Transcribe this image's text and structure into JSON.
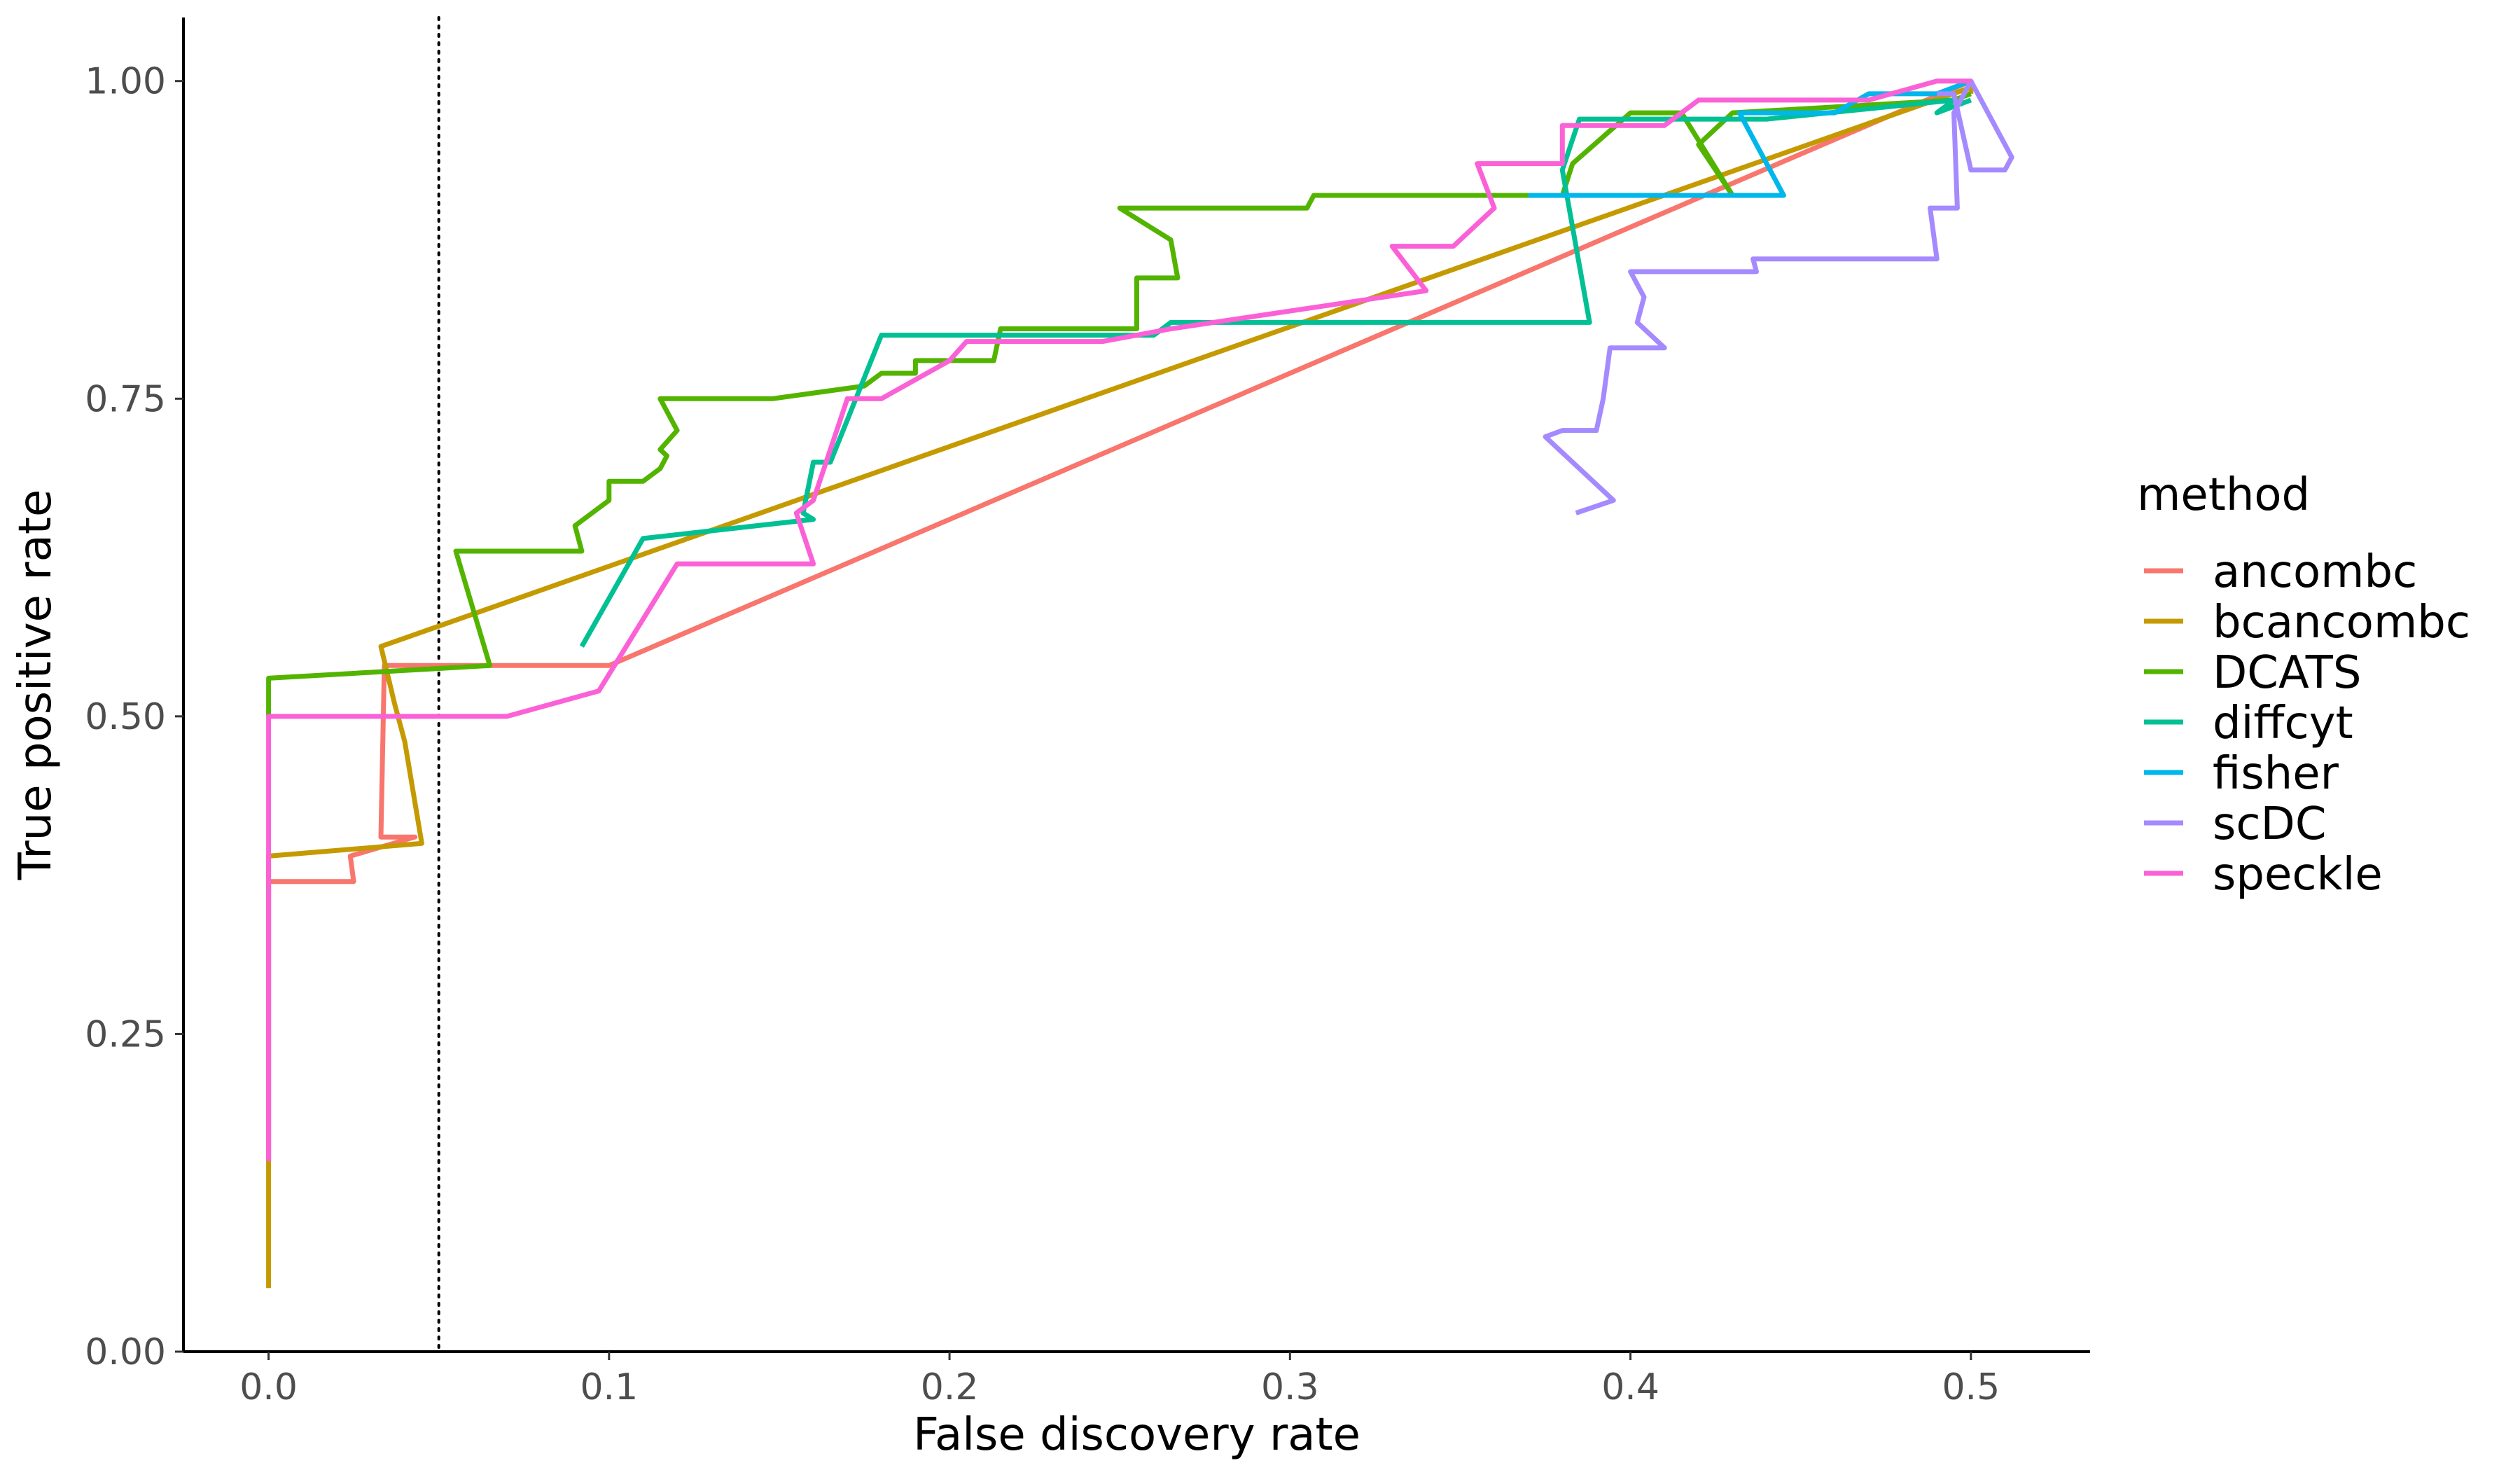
{
  "chart_data": {
    "type": "line",
    "xlabel": "False discovery rate",
    "ylabel": "True positive rate",
    "xlim": [
      -0.025,
      0.535
    ],
    "ylim": [
      0,
      1.05
    ],
    "x_ticks": [
      0.0,
      0.1,
      0.2,
      0.3,
      0.4,
      0.5
    ],
    "x_tick_labels": [
      "0.0",
      "0.1",
      "0.2",
      "0.3",
      "0.4",
      "0.5"
    ],
    "y_ticks": [
      0.0,
      0.25,
      0.5,
      0.75,
      1.0
    ],
    "y_tick_labels": [
      "0.00",
      "0.25",
      "0.50",
      "0.75",
      "1.00"
    ],
    "grid": false,
    "reference_line": {
      "x": 0.05,
      "style": "dotted",
      "color": "#000000"
    },
    "legend": {
      "title": "method",
      "position": "right"
    },
    "series": [
      {
        "name": "ancombc",
        "color": "#F8766D",
        "points": [
          [
            0,
            0.15
          ],
          [
            0,
            0.37
          ],
          [
            0.025,
            0.37
          ],
          [
            0.024,
            0.39
          ],
          [
            0.043,
            0.405
          ],
          [
            0.033,
            0.405
          ],
          [
            0.034,
            0.54
          ],
          [
            0.1,
            0.54
          ],
          [
            0.5,
            1.0
          ]
        ]
      },
      {
        "name": "bcancombc",
        "color": "#C49A00",
        "points": [
          [
            0,
            0.05
          ],
          [
            0,
            0.39
          ],
          [
            0.045,
            0.4
          ],
          [
            0.04,
            0.48
          ],
          [
            0.037,
            0.51
          ],
          [
            0.033,
            0.555
          ],
          [
            0.5,
            0.995
          ],
          [
            0.5,
            0.99
          ]
        ]
      },
      {
        "name": "DCATS",
        "color": "#53B400",
        "points": [
          [
            0,
            0.5
          ],
          [
            0,
            0.53
          ],
          [
            0.065,
            0.54
          ],
          [
            0.055,
            0.63
          ],
          [
            0.092,
            0.63
          ],
          [
            0.09,
            0.65
          ],
          [
            0.1,
            0.67
          ],
          [
            0.1,
            0.685
          ],
          [
            0.11,
            0.685
          ],
          [
            0.115,
            0.695
          ],
          [
            0.117,
            0.705
          ],
          [
            0.115,
            0.71
          ],
          [
            0.12,
            0.725
          ],
          [
            0.115,
            0.75
          ],
          [
            0.148,
            0.75
          ],
          [
            0.175,
            0.76
          ],
          [
            0.18,
            0.77
          ],
          [
            0.19,
            0.77
          ],
          [
            0.19,
            0.78
          ],
          [
            0.2,
            0.78
          ],
          [
            0.2,
            0.78
          ],
          [
            0.213,
            0.78
          ],
          [
            0.215,
            0.805
          ],
          [
            0.255,
            0.805
          ],
          [
            0.255,
            0.845
          ],
          [
            0.267,
            0.845
          ],
          [
            0.265,
            0.875
          ],
          [
            0.25,
            0.9
          ],
          [
            0.305,
            0.9
          ],
          [
            0.307,
            0.91
          ],
          [
            0.38,
            0.91
          ],
          [
            0.383,
            0.935
          ],
          [
            0.4,
            0.975
          ],
          [
            0.415,
            0.975
          ],
          [
            0.43,
            0.91
          ],
          [
            0.42,
            0.95
          ],
          [
            0.43,
            0.975
          ],
          [
            0.495,
            0.985
          ],
          [
            0.5,
            0.99
          ]
        ]
      },
      {
        "name": "diffcyt",
        "color": "#00C094",
        "points": [
          [
            0.092,
            0.555
          ],
          [
            0.11,
            0.64
          ],
          [
            0.16,
            0.655
          ],
          [
            0.157,
            0.66
          ],
          [
            0.16,
            0.7
          ],
          [
            0.165,
            0.7
          ],
          [
            0.18,
            0.8
          ],
          [
            0.205,
            0.8
          ],
          [
            0.26,
            0.8
          ],
          [
            0.265,
            0.81
          ],
          [
            0.38,
            0.81
          ],
          [
            0.388,
            0.81
          ],
          [
            0.38,
            0.93
          ],
          [
            0.385,
            0.97
          ],
          [
            0.44,
            0.97
          ],
          [
            0.495,
            0.985
          ],
          [
            0.49,
            0.975
          ],
          [
            0.5,
            0.985
          ]
        ]
      },
      {
        "name": "fisher",
        "color": "#00B6EB",
        "points": [
          [
            0.37,
            0.91
          ],
          [
            0.445,
            0.91
          ],
          [
            0.432,
            0.975
          ],
          [
            0.46,
            0.975
          ],
          [
            0.47,
            0.99
          ],
          [
            0.49,
            0.99
          ],
          [
            0.5,
            1.0
          ]
        ]
      },
      {
        "name": "scDC",
        "color": "#A58AFF",
        "points": [
          [
            0.384,
            0.66
          ],
          [
            0.395,
            0.67
          ],
          [
            0.375,
            0.72
          ],
          [
            0.38,
            0.725
          ],
          [
            0.39,
            0.725
          ],
          [
            0.392,
            0.75
          ],
          [
            0.394,
            0.79
          ],
          [
            0.41,
            0.79
          ],
          [
            0.402,
            0.81
          ],
          [
            0.404,
            0.83
          ],
          [
            0.4,
            0.85
          ],
          [
            0.437,
            0.85
          ],
          [
            0.436,
            0.86
          ],
          [
            0.49,
            0.86
          ],
          [
            0.488,
            0.9
          ],
          [
            0.496,
            0.9
          ],
          [
            0.495,
            0.975
          ],
          [
            0.5,
            1.0
          ],
          [
            0.512,
            0.94
          ],
          [
            0.51,
            0.93
          ],
          [
            0.5,
            0.93
          ],
          [
            0.495,
            0.99
          ],
          [
            0.49,
            0.99
          ]
        ]
      },
      {
        "name": "speckle",
        "color": "#FB61D7",
        "points": [
          [
            0,
            0.15
          ],
          [
            0,
            0.5
          ],
          [
            0.07,
            0.5
          ],
          [
            0.097,
            0.52
          ],
          [
            0.12,
            0.62
          ],
          [
            0.16,
            0.62
          ],
          [
            0.155,
            0.66
          ],
          [
            0.16,
            0.67
          ],
          [
            0.17,
            0.75
          ],
          [
            0.18,
            0.75
          ],
          [
            0.2,
            0.78
          ],
          [
            0.205,
            0.795
          ],
          [
            0.245,
            0.795
          ],
          [
            0.255,
            0.8
          ],
          [
            0.265,
            0.805
          ],
          [
            0.34,
            0.835
          ],
          [
            0.33,
            0.87
          ],
          [
            0.348,
            0.87
          ],
          [
            0.36,
            0.9
          ],
          [
            0.355,
            0.935
          ],
          [
            0.38,
            0.935
          ],
          [
            0.38,
            0.965
          ],
          [
            0.41,
            0.965
          ],
          [
            0.42,
            0.985
          ],
          [
            0.46,
            0.985
          ],
          [
            0.47,
            0.985
          ],
          [
            0.49,
            1.0
          ],
          [
            0.49,
            1.0
          ],
          [
            0.5,
            1.0
          ]
        ]
      }
    ]
  }
}
